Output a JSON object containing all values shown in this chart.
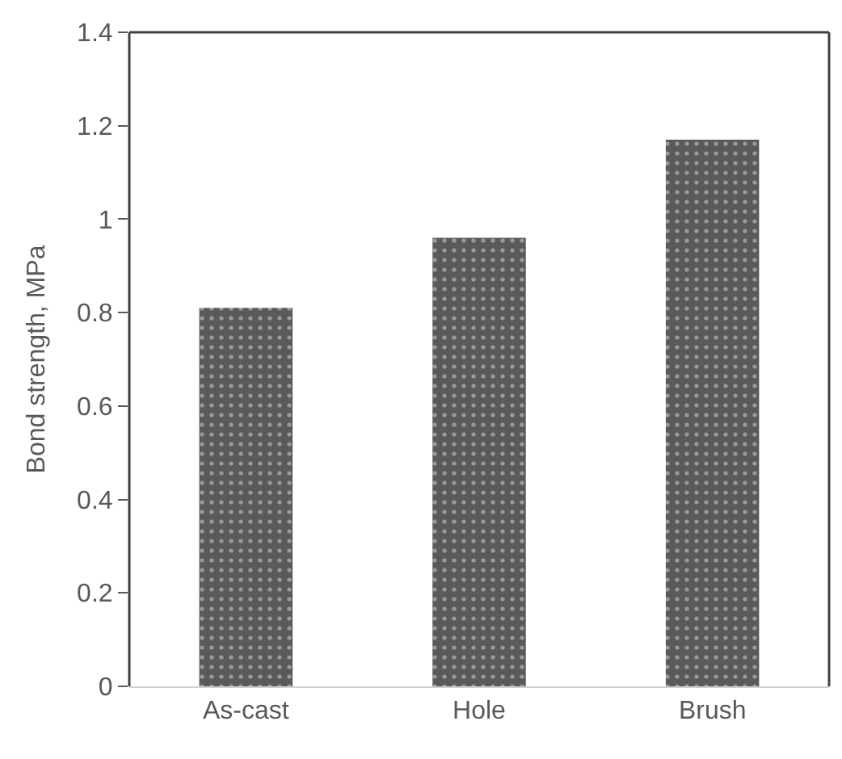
{
  "chart_data": {
    "type": "bar",
    "ylabel": "Bond strength, MPa",
    "categories": [
      "As-cast",
      "Hole",
      "Brush"
    ],
    "values": [
      0.81,
      0.96,
      1.17
    ],
    "color": "#5a5a5a",
    "ylim": [
      0,
      1.4
    ],
    "yticks": [
      0,
      0.2,
      0.4,
      0.6,
      0.8,
      1,
      1.2,
      1.4
    ],
    "grid": false,
    "legend": false
  }
}
